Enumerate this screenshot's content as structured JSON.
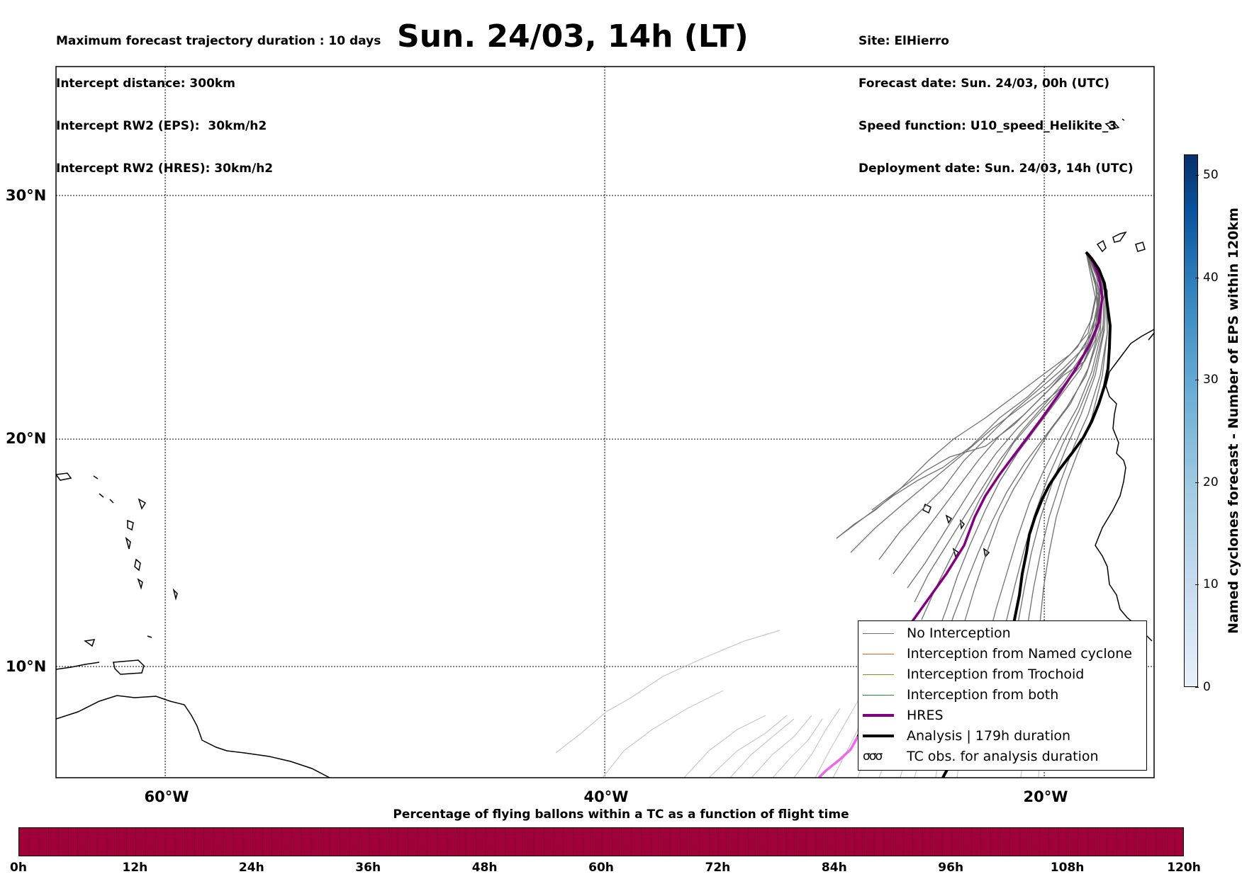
{
  "header": {
    "left_lines": [
      "Maximum forecast trajectory duration : 10 days",
      "Intercept distance: 300km",
      "Intercept RW2 (EPS):  30km/h2",
      "Intercept RW2 (HRES): 30km/h2"
    ],
    "title": "Sun. 24/03, 14h (LT)",
    "right_lines": [
      "Site: ElHierro",
      "Forecast date: Sun. 24/03, 00h (UTC)",
      "Speed function: U10_speed_Helikite_3",
      "Deployment date: Sun. 24/03, 14h (UTC)"
    ]
  },
  "map": {
    "lat_labels": [
      "30°N",
      "20°N",
      "10°N"
    ],
    "lon_labels": [
      "60°W",
      "40°W",
      "20°W"
    ],
    "colors": {
      "no_interception": "#707070",
      "named_cyclone": "#e8602c",
      "trochoid": "#8b8b2a",
      "both": "#2a8b2a",
      "hres": "#800080",
      "analysis": "#000000"
    }
  },
  "legend": {
    "items": [
      "No Interception",
      "Interception from Named cyclone",
      "Interception from Trochoid",
      "Interception from both",
      "HRES",
      "Analysis | 179h duration",
      "TC obs. for analysis duration"
    ],
    "tc_symbol": "σσσ"
  },
  "percentage_bar": {
    "title": "Percentage of flying ballons within a TC as a function of flight time",
    "hours": [
      "0h",
      "12h",
      "24h",
      "36h",
      "48h",
      "60h",
      "72h",
      "84h",
      "96h",
      "108h",
      "120h"
    ],
    "fill_color": "#a0003a"
  },
  "colorbar": {
    "label": "Named cyclones forecast - Number of EPS within 120km",
    "ticks": [
      "0",
      "10",
      "20",
      "30",
      "40",
      "50"
    ]
  }
}
